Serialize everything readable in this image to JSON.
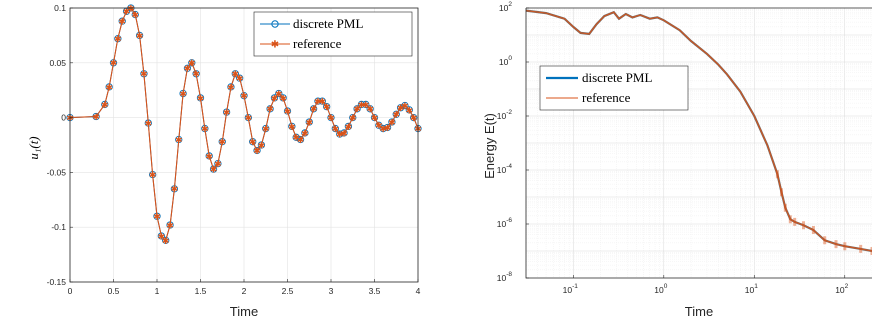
{
  "chart_data": [
    {
      "type": "line",
      "title": "",
      "xlabel": "Time",
      "ylabel": "u_1(t)",
      "ylabel_display": "u₁(t)",
      "xlim": [
        0,
        4
      ],
      "ylim": [
        -0.15,
        0.1
      ],
      "x_ticks": [
        "0",
        "0.5",
        "1",
        "1.5",
        "2",
        "2.5",
        "3",
        "3.5",
        "4"
      ],
      "y_ticks": [
        "-0.15",
        "-0.1",
        "-0.05",
        "0",
        "0.05",
        "0.1"
      ],
      "grid": true,
      "legend_position": "top-right",
      "series": [
        {
          "name": "discrete PML",
          "color": "#0072BD",
          "marker": "circle",
          "x": [
            0,
            0.3,
            0.4,
            0.45,
            0.5,
            0.55,
            0.6,
            0.65,
            0.7,
            0.75,
            0.8,
            0.85,
            0.9,
            0.95,
            1.0,
            1.05,
            1.1,
            1.15,
            1.2,
            1.25,
            1.3,
            1.35,
            1.4,
            1.45,
            1.5,
            1.55,
            1.6,
            1.65,
            1.7,
            1.75,
            1.8,
            1.85,
            1.9,
            1.95,
            2.0,
            2.05,
            2.1,
            2.15,
            2.2,
            2.25,
            2.3,
            2.35,
            2.4,
            2.45,
            2.5,
            2.55,
            2.6,
            2.65,
            2.7,
            2.75,
            2.8,
            2.85,
            2.9,
            2.95,
            3.0,
            3.05,
            3.1,
            3.15,
            3.2,
            3.25,
            3.3,
            3.35,
            3.4,
            3.45,
            3.5,
            3.55,
            3.6,
            3.65,
            3.7,
            3.75,
            3.8,
            3.85,
            3.9,
            3.95,
            4.0
          ],
          "y": [
            0,
            0.001,
            0.012,
            0.028,
            0.05,
            0.072,
            0.088,
            0.097,
            0.1,
            0.094,
            0.075,
            0.04,
            -0.005,
            -0.052,
            -0.09,
            -0.108,
            -0.112,
            -0.098,
            -0.065,
            -0.02,
            0.022,
            0.045,
            0.05,
            0.04,
            0.018,
            -0.01,
            -0.035,
            -0.047,
            -0.042,
            -0.022,
            0.005,
            0.028,
            0.04,
            0.036,
            0.02,
            0.0,
            -0.022,
            -0.03,
            -0.025,
            -0.01,
            0.008,
            0.018,
            0.022,
            0.018,
            0.006,
            -0.008,
            -0.018,
            -0.02,
            -0.014,
            -0.004,
            0.008,
            0.015,
            0.015,
            0.01,
            0.0,
            -0.01,
            -0.015,
            -0.014,
            -0.008,
            0.0,
            0.008,
            0.012,
            0.012,
            0.008,
            0.0,
            -0.007,
            -0.01,
            -0.009,
            -0.004,
            0.003,
            0.009,
            0.011,
            0.007,
            0.0,
            -0.01
          ]
        },
        {
          "name": "reference",
          "color": "#D95319",
          "marker": "star",
          "x": [
            0,
            0.3,
            0.4,
            0.45,
            0.5,
            0.55,
            0.6,
            0.65,
            0.7,
            0.75,
            0.8,
            0.85,
            0.9,
            0.95,
            1.0,
            1.05,
            1.1,
            1.15,
            1.2,
            1.25,
            1.3,
            1.35,
            1.4,
            1.45,
            1.5,
            1.55,
            1.6,
            1.65,
            1.7,
            1.75,
            1.8,
            1.85,
            1.9,
            1.95,
            2.0,
            2.05,
            2.1,
            2.15,
            2.2,
            2.25,
            2.3,
            2.35,
            2.4,
            2.45,
            2.5,
            2.55,
            2.6,
            2.65,
            2.7,
            2.75,
            2.8,
            2.85,
            2.9,
            2.95,
            3.0,
            3.05,
            3.1,
            3.15,
            3.2,
            3.25,
            3.3,
            3.35,
            3.4,
            3.45,
            3.5,
            3.55,
            3.6,
            3.65,
            3.7,
            3.75,
            3.8,
            3.85,
            3.9,
            3.95,
            4.0
          ],
          "y": [
            0,
            0.001,
            0.012,
            0.028,
            0.05,
            0.072,
            0.088,
            0.097,
            0.1,
            0.094,
            0.075,
            0.04,
            -0.005,
            -0.052,
            -0.09,
            -0.108,
            -0.112,
            -0.098,
            -0.065,
            -0.02,
            0.022,
            0.045,
            0.05,
            0.04,
            0.018,
            -0.01,
            -0.035,
            -0.047,
            -0.042,
            -0.022,
            0.005,
            0.028,
            0.04,
            0.036,
            0.02,
            0.0,
            -0.022,
            -0.03,
            -0.025,
            -0.01,
            0.008,
            0.018,
            0.022,
            0.018,
            0.006,
            -0.008,
            -0.018,
            -0.02,
            -0.014,
            -0.004,
            0.008,
            0.015,
            0.015,
            0.01,
            0.0,
            -0.01,
            -0.015,
            -0.014,
            -0.008,
            0.0,
            0.008,
            0.012,
            0.012,
            0.008,
            0.0,
            -0.007,
            -0.01,
            -0.009,
            -0.004,
            0.003,
            0.009,
            0.011,
            0.007,
            0.0,
            -0.01
          ]
        }
      ]
    },
    {
      "type": "line",
      "title": "",
      "xlabel": "Time",
      "ylabel": "Energy E(t)",
      "x_scale": "log",
      "y_scale": "log",
      "xlim": [
        0.03,
        200
      ],
      "ylim": [
        1e-08,
        100
      ],
      "x_ticks": [
        {
          "value": 0.1,
          "label": "10",
          "exp": "-1"
        },
        {
          "value": 1,
          "label": "10",
          "exp": "0"
        },
        {
          "value": 10,
          "label": "10",
          "exp": "1"
        },
        {
          "value": 100,
          "label": "10",
          "exp": "2"
        }
      ],
      "y_ticks": [
        {
          "value": 1e-08,
          "label": "10",
          "exp": "-8"
        },
        {
          "value": 1e-06,
          "label": "10",
          "exp": "-6"
        },
        {
          "value": 0.0001,
          "label": "10",
          "exp": "-4"
        },
        {
          "value": 0.01,
          "label": "10",
          "exp": "-2"
        },
        {
          "value": 1,
          "label": "10",
          "exp": "0"
        },
        {
          "value": 100,
          "label": "10",
          "exp": "2"
        }
      ],
      "grid": true,
      "minor_grid": true,
      "legend_position": "upper-left",
      "series": [
        {
          "name": "discrete PML",
          "color": "#0072BD",
          "x": [
            0.03,
            0.05,
            0.08,
            0.1,
            0.12,
            0.15,
            0.18,
            0.22,
            0.28,
            0.32,
            0.38,
            0.45,
            0.55,
            0.7,
            0.85,
            1.0,
            1.5,
            2,
            3,
            4,
            5,
            7,
            10,
            14,
            18,
            20,
            22,
            25,
            28,
            35,
            45,
            60,
            80,
            100,
            150,
            200
          ],
          "y": [
            80,
            65,
            40,
            20,
            12,
            11,
            25,
            50,
            70,
            40,
            60,
            45,
            55,
            40,
            45,
            35,
            15,
            6,
            2,
            0.8,
            0.35,
            0.08,
            0.01,
            0.0008,
            7e-05,
            1.5e-05,
            4e-06,
            1.5e-06,
            1.2e-06,
            9e-07,
            6e-07,
            2.5e-07,
            1.8e-07,
            1.5e-07,
            1.2e-07,
            1e-07
          ]
        },
        {
          "name": "reference",
          "color": "#D95319",
          "x": [
            0.03,
            0.05,
            0.08,
            0.1,
            0.12,
            0.15,
            0.18,
            0.22,
            0.28,
            0.32,
            0.38,
            0.45,
            0.55,
            0.7,
            0.85,
            1.0,
            1.5,
            2,
            3,
            4,
            5,
            7,
            10,
            14,
            18,
            20,
            22,
            25,
            28,
            35,
            45,
            60,
            80,
            100,
            150,
            200
          ],
          "y": [
            80,
            65,
            40,
            20,
            12,
            11,
            25,
            50,
            70,
            40,
            60,
            45,
            55,
            40,
            45,
            35,
            15,
            6,
            2,
            0.8,
            0.35,
            0.08,
            0.01,
            0.0008,
            7e-05,
            1.5e-05,
            4e-06,
            1.5e-06,
            1.2e-06,
            9e-07,
            6e-07,
            2.5e-07,
            1.8e-07,
            1.5e-07,
            1.2e-07,
            1e-07
          ]
        }
      ]
    }
  ]
}
